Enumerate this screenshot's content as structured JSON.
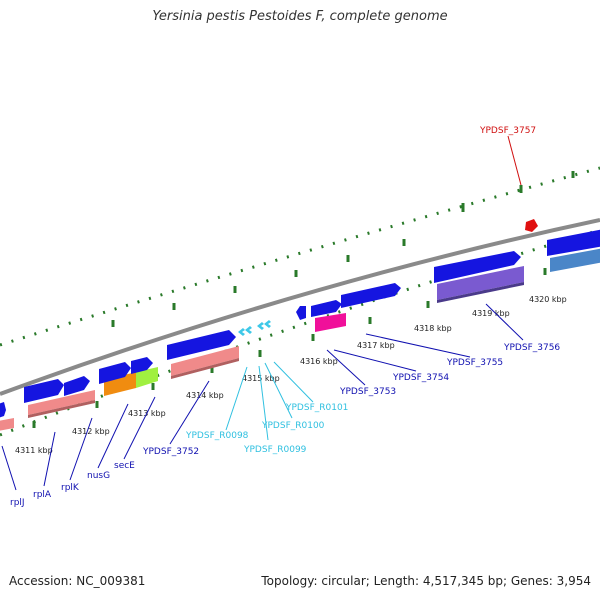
{
  "title": "Yersinia pestis Pestoides F, complete genome",
  "footer": {
    "accession": "Accession: NC_009381",
    "summary": "Topology: circular; Length: 4,517,345 bp; Genes: 3,954"
  },
  "colors": {
    "backbone": "#8a8a8a",
    "tick": "#2a7a2a",
    "cds": "#1515e0",
    "cds_shade": "#f08a8a",
    "rna": "#3ec8e8",
    "red_gene": "#e01010",
    "orange": "#f08c10",
    "lime": "#a0f040",
    "purple": "#7a5ad0",
    "steel": "#4a86c8",
    "pink": "#f0109a",
    "label_blue": "#1010b0",
    "label_cyan": "#30c0e0",
    "label_red": "#d01010"
  },
  "kbp_ticks": [
    "4311 kbp",
    "4312 kbp",
    "4313 kbp",
    "4314 kbp",
    "4315 kbp",
    "4316 kbp",
    "4317 kbp",
    "4318 kbp",
    "4319 kbp",
    "4320 kbp"
  ],
  "gene_labels": [
    {
      "text": "rplJ",
      "type": "cds"
    },
    {
      "text": "rplA",
      "type": "cds"
    },
    {
      "text": "rplK",
      "type": "cds"
    },
    {
      "text": "nusG",
      "type": "cds"
    },
    {
      "text": "secE",
      "type": "cds"
    },
    {
      "text": "YPDSF_3752",
      "type": "cds"
    },
    {
      "text": "YPDSF_R0098",
      "type": "rna"
    },
    {
      "text": "YPDSF_R0099",
      "type": "rna"
    },
    {
      "text": "YPDSF_R0100",
      "type": "rna"
    },
    {
      "text": "YPDSF_R0101",
      "type": "rna"
    },
    {
      "text": "YPDSF_3753",
      "type": "cds"
    },
    {
      "text": "YPDSF_3754",
      "type": "cds"
    },
    {
      "text": "YPDSF_3755",
      "type": "cds"
    },
    {
      "text": "YPDSF_3756",
      "type": "cds"
    },
    {
      "text": "YPDSF_3757",
      "type": "red"
    }
  ]
}
